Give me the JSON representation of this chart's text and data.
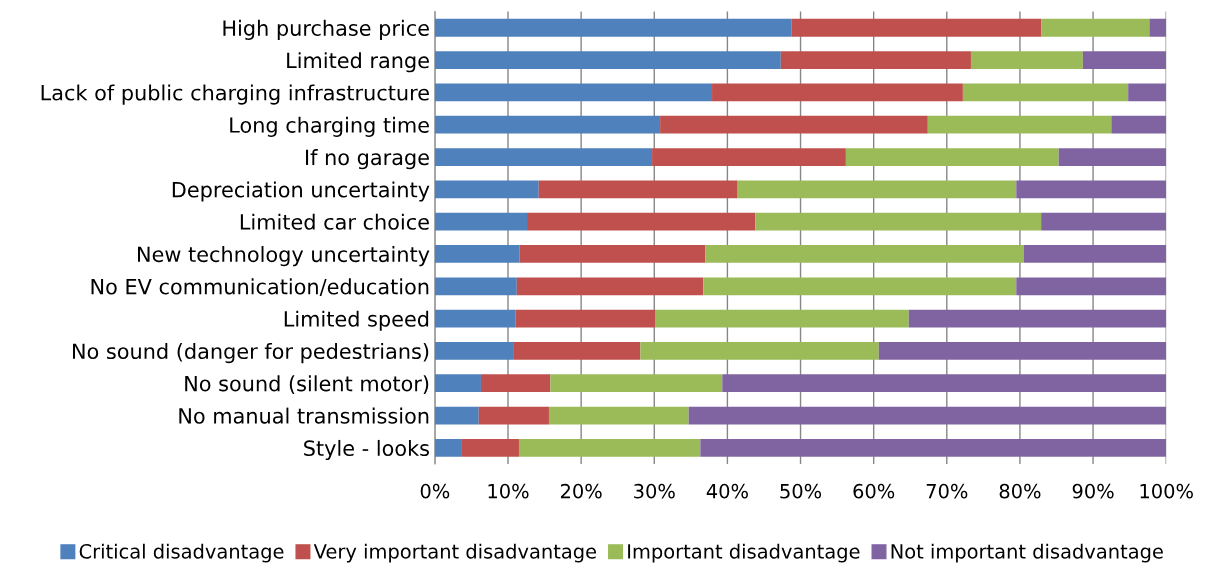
{
  "chart_data": {
    "type": "bar",
    "orientation": "horizontal",
    "stacked": true,
    "categories": [
      "High purchase price",
      "Limited range",
      "Lack of public charging infrastructure",
      "Long charging time",
      "If no garage",
      "Depreciation uncertainty",
      "Limited car choice",
      "New technology uncertainty",
      "No EV communication/education",
      "Limited speed",
      "No sound (danger for pedestrians)",
      "No sound (silent motor)",
      "No manual transmission",
      "Style - looks"
    ],
    "series": [
      {
        "name": "Critical disadvantage",
        "color": "#4f81bd",
        "values": [
          48.8,
          47.3,
          37.9,
          30.8,
          29.7,
          14.2,
          12.6,
          11.6,
          11.2,
          11.0,
          10.7,
          6.3,
          6.0,
          3.7
        ]
      },
      {
        "name": "Very important disadvantage",
        "color": "#c0504d",
        "values": [
          34.1,
          26.0,
          34.3,
          36.6,
          26.5,
          27.2,
          31.2,
          25.4,
          25.5,
          19.1,
          17.4,
          9.5,
          9.6,
          7.8
        ]
      },
      {
        "name": "Important disadvantage",
        "color": "#9bbb59",
        "values": [
          14.8,
          15.3,
          22.6,
          25.1,
          29.1,
          38.1,
          39.1,
          43.5,
          42.8,
          34.7,
          32.6,
          23.5,
          19.1,
          24.8
        ]
      },
      {
        "name": "Not important disadvantage",
        "color": "#8064a2",
        "values": [
          2.3,
          11.4,
          5.2,
          7.5,
          14.7,
          20.5,
          17.1,
          19.5,
          20.5,
          35.2,
          39.3,
          60.7,
          65.3,
          63.7
        ]
      }
    ],
    "xlim": [
      0,
      100
    ],
    "xticks": [
      {
        "value": 0,
        "label": "0%"
      },
      {
        "value": 10,
        "label": "10%"
      },
      {
        "value": 20,
        "label": "20%"
      },
      {
        "value": 30,
        "label": "30%"
      },
      {
        "value": 40,
        "label": "40%"
      },
      {
        "value": 50,
        "label": "50%"
      },
      {
        "value": 60,
        "label": "60%"
      },
      {
        "value": 70,
        "label": "70%"
      },
      {
        "value": 80,
        "label": "80%"
      },
      {
        "value": 90,
        "label": "90%"
      },
      {
        "value": 100,
        "label": "100%"
      }
    ],
    "grid": "x",
    "legend": "bottom"
  }
}
